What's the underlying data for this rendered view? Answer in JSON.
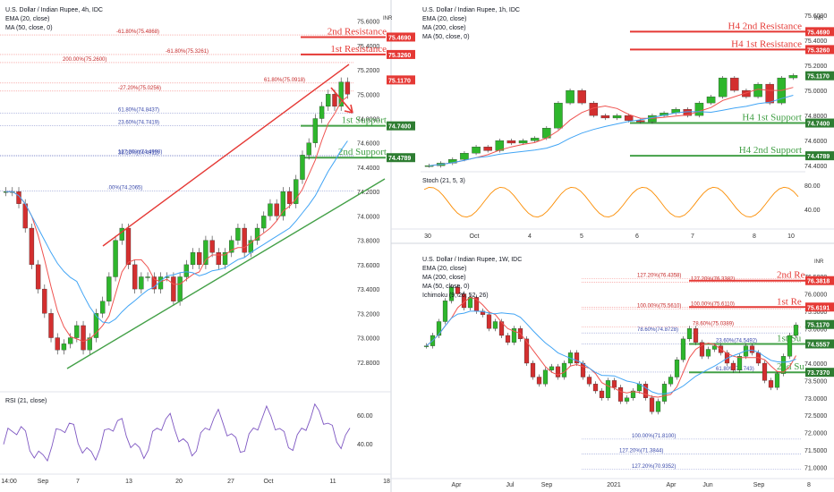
{
  "chart_data": [
    {
      "type": "candlestick",
      "title": "U.S. Dollar / Indian Rupee, 4h, IDC",
      "indicators": [
        "EMA (20, close)",
        "MA (50, close, 0)"
      ],
      "currency_label": "INR",
      "ylim": [
        72.6,
        75.7
      ],
      "y_ticks": [
        "75.6000",
        "75.4000",
        "75.2000",
        "75.0000",
        "74.8000",
        "74.6000",
        "74.4000",
        "74.2000",
        "74.0000",
        "73.8000",
        "73.6000",
        "73.4000",
        "73.2000",
        "73.0000",
        "72.8000"
      ],
      "x_ticks": [
        "14:00",
        "Sep",
        "7",
        "13",
        "20",
        "27",
        "Oct",
        "11",
        "18"
      ],
      "price_badges": [
        {
          "value": "75.4690",
          "color": "#e53935"
        },
        {
          "value": "75.3260",
          "color": "#e53935"
        },
        {
          "value": "75.1170",
          "color": "#e53935"
        },
        {
          "value": "74.7400",
          "color": "#2e7d32"
        },
        {
          "value": "74.4789",
          "color": "#2e7d32"
        }
      ],
      "levels": [
        {
          "label": "2nd Resistance",
          "value": 75.469,
          "color": "#e53935"
        },
        {
          "label": "1st Resistance",
          "value": 75.326,
          "color": "#e53935"
        },
        {
          "label": "1st Support",
          "value": 74.74,
          "color": "#43a047"
        },
        {
          "label": "2nd Support",
          "value": 74.4789,
          "color": "#43a047"
        }
      ],
      "fib_labels": [
        {
          "text": "-61.80%(75.4868)",
          "value": 75.4868
        },
        {
          "text": "-61.80%(75.3261)",
          "value": 75.3261
        },
        {
          "text": "200.00%(75.2600)",
          "value": 75.26
        },
        {
          "text": "61.80%(75.0918)",
          "value": 75.0918
        },
        {
          "text": "-27.20%(75.0256)",
          "value": 75.0256
        },
        {
          "text": "61.80%(74.8437)",
          "value": 74.8437
        },
        {
          "text": "23.60%(74.7419)",
          "value": 74.7419
        },
        {
          "text": "127.20%(74.4998)",
          "value": 74.4998
        },
        {
          "text": "38.20%(74.4911)",
          "value": 74.4911
        },
        {
          "text": ".00%(74.2065)",
          "value": 74.2065
        }
      ],
      "close_path": [
        74.2,
        74.2,
        74.1,
        73.9,
        73.6,
        73.4,
        73.2,
        73.0,
        72.9,
        72.95,
        73.0,
        73.1,
        72.9,
        73.0,
        73.2,
        73.3,
        73.5,
        73.8,
        73.9,
        73.6,
        73.4,
        73.5,
        73.5,
        73.4,
        73.5,
        73.5,
        73.3,
        73.5,
        73.6,
        73.7,
        73.6,
        73.8,
        73.7,
        73.6,
        73.7,
        73.8,
        73.9,
        73.7,
        73.8,
        73.9,
        74.0,
        74.1,
        74.0,
        74.2,
        74.1,
        74.3,
        74.5,
        74.6,
        74.8,
        74.9,
        75.0,
        74.9,
        75.1,
        75.0
      ],
      "rsi": {
        "label": "RSI (21, close)",
        "ticks": [
          "60.00",
          "40.00"
        ]
      }
    },
    {
      "type": "candlestick",
      "title": "U.S. Dollar / Indian Rupee, 1h, IDC",
      "indicators": [
        "EMA (20, close)",
        "MA (200, close)",
        "MA (50, close, 0)"
      ],
      "currency_label": "INR",
      "ylim": [
        74.38,
        75.65
      ],
      "y_ticks": [
        "75.6000",
        "75.4000",
        "75.2000",
        "75.0000",
        "74.8000",
        "74.6000",
        "74.4000"
      ],
      "x_ticks": [
        "30",
        "Oct",
        "4",
        "5",
        "6",
        "7",
        "8",
        "10"
      ],
      "price_badges": [
        {
          "value": "75.4690",
          "color": "#e53935"
        },
        {
          "value": "75.3260",
          "color": "#e53935"
        },
        {
          "value": "75.1170",
          "color": "#2e7d32"
        },
        {
          "value": "74.7400",
          "color": "#2e7d32"
        },
        {
          "value": "74.4789",
          "color": "#2e7d32"
        }
      ],
      "levels": [
        {
          "label": "H4 2nd Resistance",
          "value": 75.469,
          "color": "#e53935"
        },
        {
          "label": "H4 1st Resistance",
          "value": 75.326,
          "color": "#e53935"
        },
        {
          "label": "H4 1st Support",
          "value": 74.74,
          "color": "#43a047"
        },
        {
          "label": "H4 2nd Support",
          "value": 74.4789,
          "color": "#43a047"
        }
      ],
      "close_path": [
        74.4,
        74.42,
        74.45,
        74.5,
        74.55,
        74.52,
        74.6,
        74.58,
        74.6,
        74.62,
        74.7,
        74.9,
        75.0,
        74.9,
        74.8,
        74.78,
        74.8,
        74.76,
        74.75,
        74.8,
        74.82,
        74.85,
        74.8,
        74.9,
        74.95,
        75.1,
        75.0,
        74.95,
        75.05,
        74.9,
        75.1,
        75.12
      ],
      "stoch": {
        "label": "Stoch (21, 5, 3)",
        "ticks": [
          "80.00",
          "40.00"
        ]
      }
    },
    {
      "type": "candlestick",
      "title": "U.S. Dollar / Indian Rupee, 1W, IDC",
      "indicators": [
        "EMA (20, close)",
        "MA (200, close)",
        "MA (50, close, 0)",
        "Ichimoku (9, 26, 52, 26)"
      ],
      "currency_label": "INR",
      "ylim": [
        70.8,
        77.2
      ],
      "y_ticks": [
        "76.5000",
        "76.0000",
        "75.5000",
        "75.0000",
        "74.5000",
        "74.0000",
        "73.5000",
        "73.0000",
        "72.5000",
        "72.0000",
        "71.5000",
        "71.0000"
      ],
      "x_ticks": [
        "Apr",
        "Jul",
        "Sep",
        "2021",
        "Apr",
        "Jun",
        "Sep",
        "8"
      ],
      "price_badges": [
        {
          "value": "76.3818",
          "color": "#e53935"
        },
        {
          "value": "75.6191",
          "color": "#e53935"
        },
        {
          "value": "75.1170",
          "color": "#2e7d32"
        },
        {
          "value": "74.5557",
          "color": "#2e7d32"
        },
        {
          "value": "73.7370",
          "color": "#2e7d32"
        }
      ],
      "levels": [
        {
          "label": "2nd Re",
          "value": 76.3818,
          "color": "#e53935"
        },
        {
          "label": "1st Re",
          "value": 75.6191,
          "color": "#e53935"
        },
        {
          "label": "1st Su",
          "value": 74.5557,
          "color": "#43a047"
        },
        {
          "label": "2nd Su",
          "value": 73.737,
          "color": "#43a047"
        }
      ],
      "fib_labels": [
        {
          "text": "127.20%(76.4358)",
          "value": 76.4358
        },
        {
          "text": "127.20%(76.3382)",
          "value": 76.3382
        },
        {
          "text": "100.00%(75.5610)",
          "value": 75.561
        },
        {
          "text": "100.00%(75.6110)",
          "value": 75.611
        },
        {
          "text": "78.60%(74.8728)",
          "value": 74.8728
        },
        {
          "text": "78.60%(75.0389)",
          "value": 75.0389
        },
        {
          "text": "23.60%(74.5492)",
          "value": 74.5492
        },
        {
          "text": "61.80%(73.743)",
          "value": 73.743
        },
        {
          "text": "100.00%(71.8100)",
          "value": 71.81
        },
        {
          "text": "127.20%(71.3844)",
          "value": 71.3844
        },
        {
          "text": "127.20%(70.9352)",
          "value": 70.9352
        }
      ],
      "close_path": [
        74.5,
        74.8,
        75.2,
        75.8,
        76.2,
        76.0,
        75.6,
        75.9,
        75.5,
        75.4,
        75.0,
        75.2,
        74.8,
        74.6,
        75.0,
        74.7,
        74.0,
        73.6,
        73.4,
        73.8,
        73.9,
        73.6,
        74.0,
        74.3,
        74.0,
        73.6,
        73.4,
        73.2,
        73.0,
        73.5,
        73.3,
        72.9,
        73.0,
        73.2,
        73.4,
        73.0,
        72.6,
        72.9,
        73.4,
        73.6,
        74.1,
        74.7,
        75.0,
        74.6,
        74.2,
        74.4,
        74.5,
        74.3,
        74.0,
        73.8,
        74.2,
        74.5,
        74.3,
        74.0,
        73.5,
        73.3,
        73.7,
        74.2,
        74.8,
        75.1
      ]
    }
  ]
}
